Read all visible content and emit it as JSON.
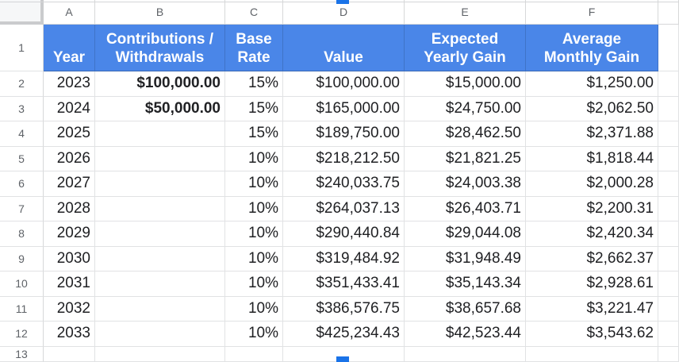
{
  "colors": {
    "header_blue": "#4a86e8",
    "selection_blue": "#1a73e8",
    "grid_line": "#e1e2e4",
    "gutter_text": "#5f6368",
    "cell_text": "#202124",
    "header_text": "#ffffff"
  },
  "column_letters": [
    "A",
    "B",
    "C",
    "D",
    "E",
    "F",
    ""
  ],
  "header_row": {
    "number": "1",
    "cells": [
      "Year",
      "Contributions /\nWithdrawals",
      "Base\nRate",
      "Value",
      "Expected\nYearly Gain",
      "Average\nMonthly Gain"
    ]
  },
  "rows": [
    {
      "number": "2",
      "cells": [
        "2023",
        "$100,000.00",
        "15%",
        "$100,000.00",
        "$15,000.00",
        "$1,250.00"
      ],
      "bold_contribution": true
    },
    {
      "number": "3",
      "cells": [
        "2024",
        "$50,000.00",
        "15%",
        "$165,000.00",
        "$24,750.00",
        "$2,062.50"
      ],
      "bold_contribution": true
    },
    {
      "number": "4",
      "cells": [
        "2025",
        "",
        "15%",
        "$189,750.00",
        "$28,462.50",
        "$2,371.88"
      ],
      "bold_contribution": false
    },
    {
      "number": "5",
      "cells": [
        "2026",
        "",
        "10%",
        "$218,212.50",
        "$21,821.25",
        "$1,818.44"
      ],
      "bold_contribution": false
    },
    {
      "number": "6",
      "cells": [
        "2027",
        "",
        "10%",
        "$240,033.75",
        "$24,003.38",
        "$2,000.28"
      ],
      "bold_contribution": false
    },
    {
      "number": "7",
      "cells": [
        "2028",
        "",
        "10%",
        "$264,037.13",
        "$26,403.71",
        "$2,200.31"
      ],
      "bold_contribution": false
    },
    {
      "number": "8",
      "cells": [
        "2029",
        "",
        "10%",
        "$290,440.84",
        "$29,044.08",
        "$2,420.34"
      ],
      "bold_contribution": false
    },
    {
      "number": "9",
      "cells": [
        "2030",
        "",
        "10%",
        "$319,484.92",
        "$31,948.49",
        "$2,662.37"
      ],
      "bold_contribution": false
    },
    {
      "number": "10",
      "cells": [
        "2031",
        "",
        "10%",
        "$351,433.41",
        "$35,143.34",
        "$2,928.61"
      ],
      "bold_contribution": false
    },
    {
      "number": "11",
      "cells": [
        "2032",
        "",
        "10%",
        "$386,576.75",
        "$38,657.68",
        "$3,221.47"
      ],
      "bold_contribution": false
    },
    {
      "number": "12",
      "cells": [
        "2033",
        "",
        "10%",
        "$425,234.43",
        "$42,523.44",
        "$3,543.62"
      ],
      "bold_contribution": false
    },
    {
      "number": "13",
      "cells": [
        "",
        "",
        "",
        "",
        "",
        ""
      ],
      "bold_contribution": false
    }
  ]
}
